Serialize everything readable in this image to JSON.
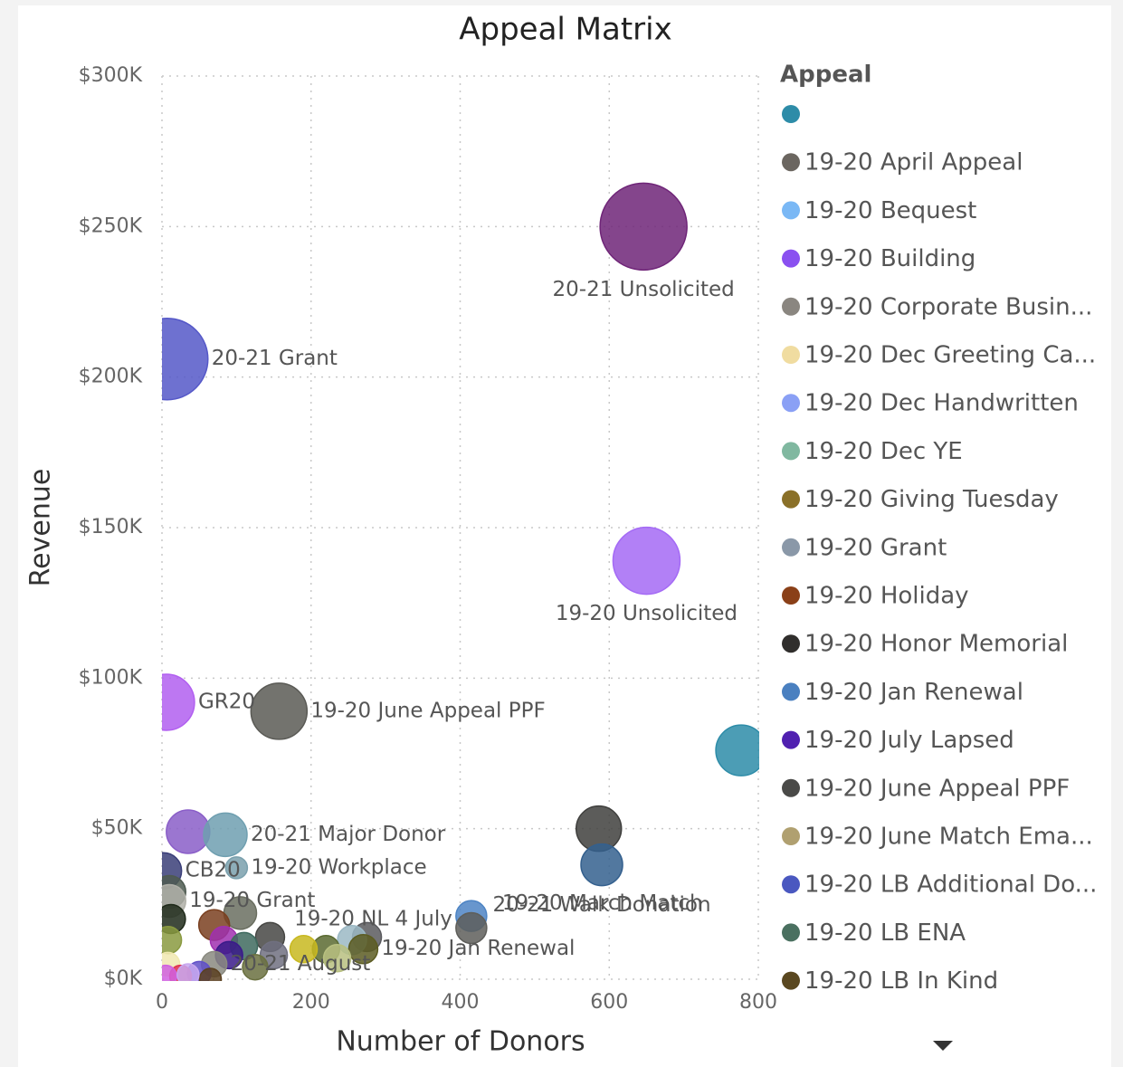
{
  "chart_data": {
    "type": "scatter",
    "title": "Appeal Matrix",
    "x_label": "Number of Donors",
    "y_label": "Revenue",
    "xlim": [
      0,
      800
    ],
    "xticks": [
      0,
      200,
      400,
      600,
      800
    ],
    "ylim": [
      0,
      300000
    ],
    "yticks": [
      {
        "value": 0,
        "label": "$0K"
      },
      {
        "value": 50000,
        "label": "$50K"
      },
      {
        "value": 100000,
        "label": "$100K"
      },
      {
        "value": 150000,
        "label": "$150K"
      },
      {
        "value": 200000,
        "label": "$200K"
      },
      {
        "value": 250000,
        "label": "$250K"
      },
      {
        "value": 300000,
        "label": "$300K"
      }
    ],
    "grid": true,
    "x": [
      646,
      7,
      650,
      6,
      157,
      777,
      586,
      590,
      35,
      85,
      2,
      100,
      10,
      10,
      105,
      12,
      70,
      415,
      415,
      145,
      275,
      255,
      83,
      110,
      220,
      190,
      270,
      8,
      90,
      150,
      235,
      70,
      125,
      50,
      8,
      25,
      5,
      65,
      35
    ],
    "y": [
      250000,
      206000,
      139000,
      92000,
      89000,
      76000,
      50000,
      38000,
      49000,
      48000,
      36000,
      37000,
      29000,
      26000,
      22000,
      20000,
      18000,
      21000,
      17000,
      14000,
      14000,
      13000,
      13000,
      11000,
      10000,
      10000,
      10000,
      13000,
      8000,
      8000,
      7000,
      5000,
      4000,
      2000,
      5000,
      1000,
      1000,
      0,
      1500
    ],
    "sizes": [
      48,
      45,
      37,
      31,
      31,
      28,
      25,
      23,
      24,
      24,
      20,
      12,
      18,
      18,
      18,
      16,
      17,
      17,
      17,
      16,
      16,
      16,
      15,
      15,
      15,
      15,
      16,
      15,
      15,
      15,
      15,
      14,
      14,
      13,
      13,
      12,
      12,
      12,
      12
    ],
    "colors": [
      "#6f2578",
      "#5558c8",
      "#a46af5",
      "#b15ff0",
      "#5a5a55",
      "#2d8ca8",
      "#3f3f3d",
      "#34608e",
      "#8a5ec8",
      "#6f9fb0",
      "#3a3e78",
      "#7aa0ad",
      "#4e5a50",
      "#b0b0a8",
      "#6a6e60",
      "#1f2a1a",
      "#7a4020",
      "#4d84c4",
      "#5e5e5a",
      "#474744",
      "#5a5a5e",
      "#9bb8c4",
      "#a030b0",
      "#3e6a5e",
      "#5a6a30",
      "#c8b820",
      "#5c5c22",
      "#8a9a40",
      "#3a1a8a",
      "#707080",
      "#b8c080",
      "#8a8a80",
      "#6a7040",
      "#6050c8",
      "#f0e8b0",
      "#e03050",
      "#d060e0",
      "#5a4020",
      "#c8a8f0"
    ],
    "labels": [
      "20-21 Unsolicited",
      "20-21 Grant",
      "19-20 Unsolicited",
      "GR20",
      "19-20 June Appeal PPF",
      null,
      null,
      "20-21 Walk Donation",
      null,
      "20-21 Major Donor",
      "CB20",
      "19-20 Workplace",
      null,
      "19-20 Grant",
      null,
      null,
      null,
      "19-20 NL 4 July",
      "19-20 March Match",
      null,
      null,
      null,
      null,
      null,
      null,
      null,
      "19-20 Jan Renewal",
      null,
      null,
      null,
      null,
      "20-21 August",
      null,
      null,
      null,
      null,
      null,
      null,
      null
    ],
    "legend": {
      "title": "Appeal",
      "items": [
        {
          "name": null,
          "color": "#2d8ca8"
        },
        {
          "name": "19-20 April Appeal",
          "color": "#6b6660"
        },
        {
          "name": "19-20 Bequest",
          "color": "#7ab8f5"
        },
        {
          "name": "19-20 Building",
          "color": "#8a50f0"
        },
        {
          "name": "19-20 Corporate Busin...",
          "color": "#8a8680"
        },
        {
          "name": "19-20 Dec Greeting Ca...",
          "color": "#f0dca0"
        },
        {
          "name": "19-20 Dec Handwritten",
          "color": "#8aa0f5"
        },
        {
          "name": "19-20 Dec YE",
          "color": "#80b8a0"
        },
        {
          "name": "19-20 Giving Tuesday",
          "color": "#8a7028"
        },
        {
          "name": "19-20 Grant",
          "color": "#8a98a8"
        },
        {
          "name": "19-20 Holiday",
          "color": "#8a4018"
        },
        {
          "name": "19-20 Honor Memorial",
          "color": "#302e2c"
        },
        {
          "name": "19-20 Jan Renewal",
          "color": "#4a80c0"
        },
        {
          "name": "19-20 July Lapsed",
          "color": "#5020b0"
        },
        {
          "name": "19-20 June Appeal PPF",
          "color": "#4a4a48"
        },
        {
          "name": "19-20 June Match Ema...",
          "color": "#b0a070"
        },
        {
          "name": "19-20 LB Additional Do...",
          "color": "#4a58c0"
        },
        {
          "name": "19-20 LB ENA",
          "color": "#4a7060"
        },
        {
          "name": "19-20 LB In Kind",
          "color": "#5a4820"
        }
      ]
    }
  }
}
